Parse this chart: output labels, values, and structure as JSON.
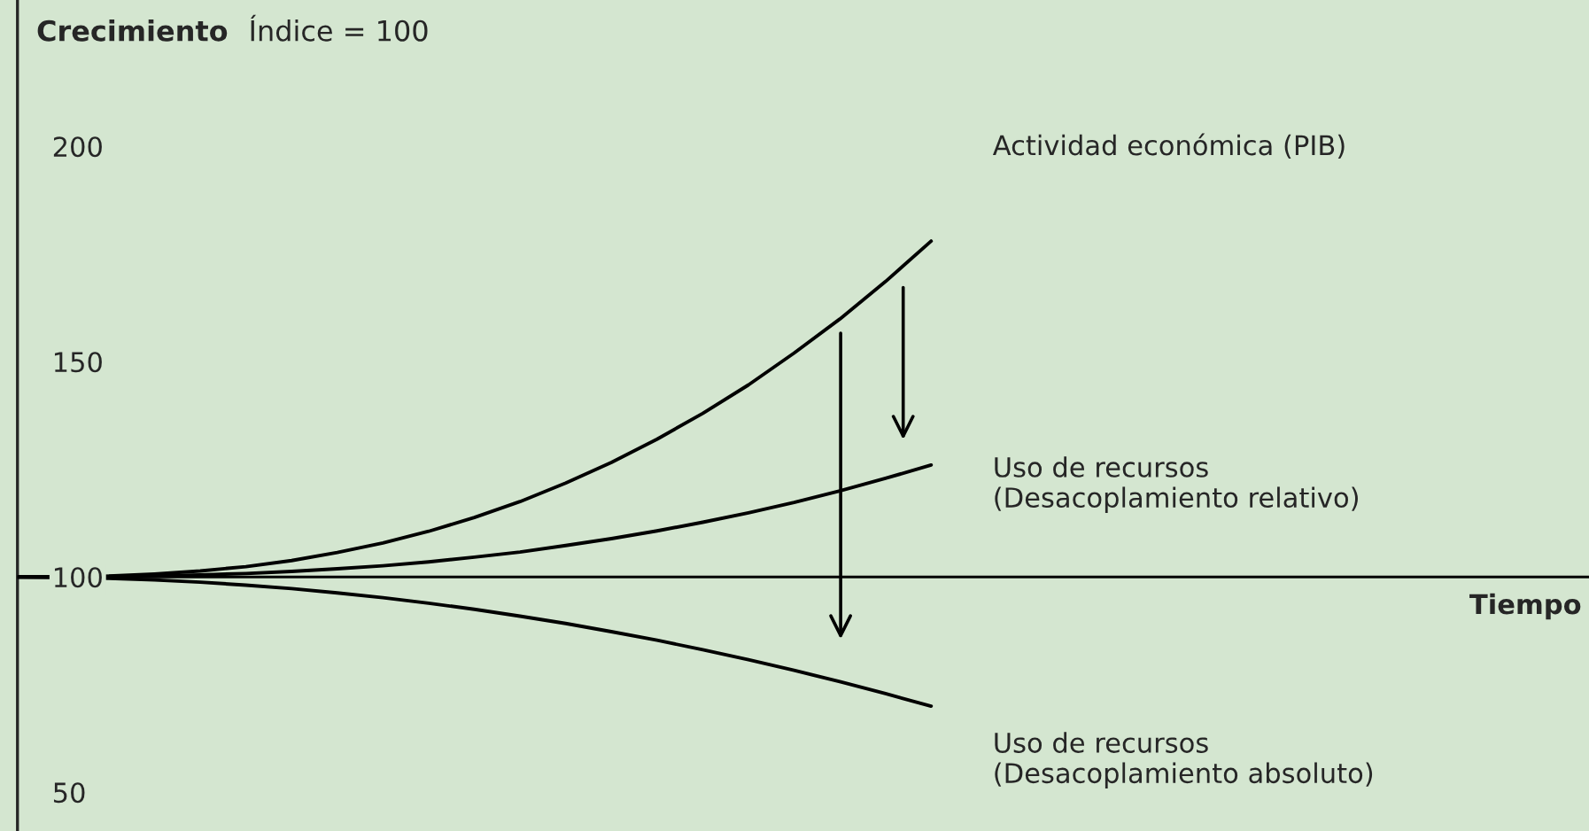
{
  "chart_data": {
    "type": "line",
    "title": "Crecimiento",
    "subtitle": "Índice = 100",
    "categories": [
      null,
      null,
      null,
      null,
      null,
      null,
      null,
      null,
      null,
      null,
      null,
      null,
      null,
      null,
      null,
      null,
      null,
      null,
      null,
      null,
      null
    ],
    "series": [
      {
        "name": "Actividad económica (PIB)",
        "color": "#000000",
        "values": [
          100,
          100.0,
          100.2,
          100.7,
          101.4,
          102.4,
          103.8,
          105.7,
          107.9,
          110.6,
          113.8,
          117.5,
          121.8,
          126.6,
          132.0,
          138.0,
          144.6,
          152.0,
          159.9,
          168.6,
          178
        ]
      },
      {
        "name": "Uso de recursos\n(Desacoplamiento relativo)",
        "color": "#000000",
        "values": [
          100,
          100.0,
          100.1,
          100.2,
          100.5,
          100.8,
          101.3,
          101.9,
          102.6,
          103.5,
          104.6,
          105.8,
          107.3,
          108.9,
          110.7,
          112.7,
          114.9,
          117.3,
          120.0,
          122.9,
          126
        ]
      },
      {
        "name": "Uso de recursos\n(Desacoplamiento absoluto)",
        "color": "#000000",
        "values": [
          100,
          99.9,
          99.7,
          99.3,
          98.8,
          98.1,
          97.3,
          96.3,
          95.2,
          93.9,
          92.5,
          90.9,
          89.2,
          87.3,
          85.3,
          83.1,
          80.8,
          78.3,
          75.7,
          72.9,
          70
        ]
      }
    ],
    "ref_lines": [
      {
        "axis": "y",
        "value": 100,
        "label": "Tiempo",
        "color": "#000000"
      }
    ],
    "ylim": [
      41,
      234
    ],
    "yticks": [
      50,
      100,
      150,
      200
    ],
    "tick_labels": "y",
    "grid": false,
    "legend": false,
    "marker": "none",
    "line_style": "solid"
  }
}
